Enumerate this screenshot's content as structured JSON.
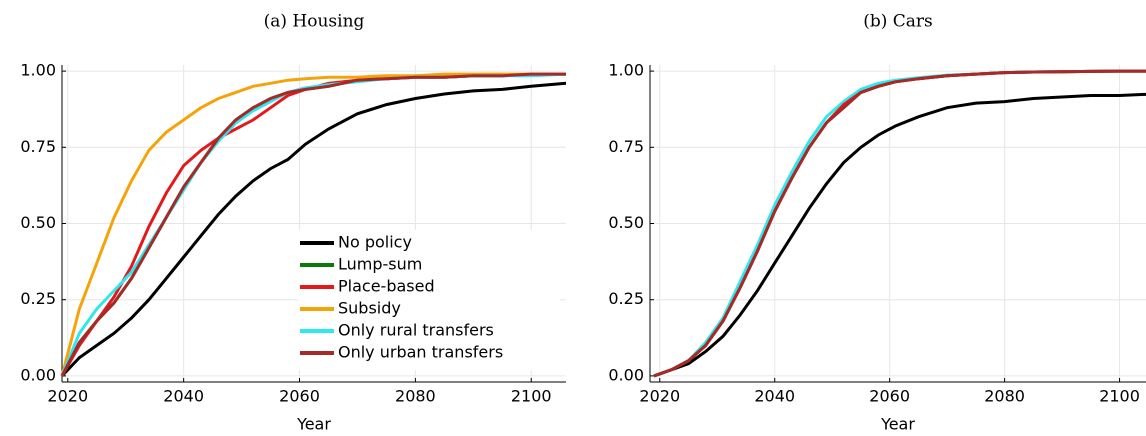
{
  "chart_data": [
    {
      "type": "line",
      "title": "(a) Housing",
      "xlabel": "Year",
      "legend": "lower right",
      "grid": true,
      "x": [
        2019,
        2022,
        2025,
        2028,
        2031,
        2034,
        2037,
        2040,
        2043,
        2046,
        2049,
        2052,
        2055,
        2058,
        2061,
        2065,
        2070,
        2075,
        2080,
        2085,
        2090,
        2095,
        2100,
        2106
      ],
      "xlim": [
        2019,
        2106
      ],
      "xticks": [
        2020,
        2040,
        2060,
        2080,
        2100
      ],
      "ylim": [
        -0.02,
        1.02
      ],
      "yticks": [
        {
          "value": 0,
          "label": "0.00"
        },
        {
          "value": 0.25,
          "label": "0.25"
        },
        {
          "value": 0.5,
          "label": "0.50"
        },
        {
          "value": 0.75,
          "label": "0.75"
        },
        {
          "value": 1,
          "label": "1.00"
        }
      ],
      "series": [
        {
          "name": "No policy",
          "color": "#000000",
          "values": [
            0,
            0.06,
            0.1,
            0.14,
            0.19,
            0.25,
            0.32,
            0.39,
            0.46,
            0.53,
            0.59,
            0.64,
            0.68,
            0.71,
            0.76,
            0.81,
            0.86,
            0.89,
            0.91,
            0.925,
            0.935,
            0.94,
            0.95,
            0.96
          ]
        },
        {
          "name": "Lump-sum",
          "color": "#0a7a0a",
          "values": [
            0,
            0.11,
            0.18,
            0.24,
            0.32,
            0.42,
            0.52,
            0.62,
            0.7,
            0.78,
            0.84,
            0.88,
            0.91,
            0.93,
            0.94,
            0.95,
            0.97,
            0.975,
            0.98,
            0.98,
            0.985,
            0.985,
            0.99,
            0.99
          ]
        },
        {
          "name": "Place-based",
          "color": "#e31a1c",
          "values": [
            0,
            0.1,
            0.18,
            0.26,
            0.36,
            0.49,
            0.6,
            0.69,
            0.74,
            0.78,
            0.81,
            0.84,
            0.88,
            0.92,
            0.94,
            0.96,
            0.97,
            0.975,
            0.98,
            0.98,
            0.985,
            0.985,
            0.99,
            0.99
          ]
        },
        {
          "name": "Subsidy",
          "color": "#f5a30a",
          "values": [
            0,
            0.22,
            0.37,
            0.52,
            0.64,
            0.74,
            0.8,
            0.84,
            0.88,
            0.91,
            0.93,
            0.95,
            0.96,
            0.97,
            0.975,
            0.98,
            0.98,
            0.985,
            0.985,
            0.99,
            0.99,
            0.99,
            0.99,
            0.99
          ]
        },
        {
          "name": "Only rural transfers",
          "color": "#2ee8ee",
          "values": [
            0,
            0.14,
            0.22,
            0.28,
            0.34,
            0.43,
            0.52,
            0.61,
            0.7,
            0.77,
            0.83,
            0.87,
            0.9,
            0.93,
            0.945,
            0.955,
            0.965,
            0.975,
            0.98,
            0.98,
            0.985,
            0.985,
            0.985,
            0.99
          ]
        },
        {
          "name": "Only urban transfers",
          "color": "#a52a2a",
          "values": [
            0,
            0.11,
            0.18,
            0.24,
            0.32,
            0.42,
            0.52,
            0.62,
            0.7,
            0.78,
            0.84,
            0.88,
            0.91,
            0.93,
            0.94,
            0.95,
            0.97,
            0.975,
            0.98,
            0.98,
            0.985,
            0.985,
            0.99,
            0.99
          ]
        }
      ]
    },
    {
      "type": "line",
      "title": "(b) Cars",
      "xlabel": "Year",
      "grid": true,
      "x": [
        2019,
        2022,
        2025,
        2028,
        2031,
        2034,
        2037,
        2040,
        2043,
        2046,
        2049,
        2052,
        2055,
        2058,
        2061,
        2065,
        2070,
        2075,
        2080,
        2085,
        2090,
        2095,
        2100,
        2106
      ],
      "xlim": [
        2018.3,
        2104.6
      ],
      "xticks": [
        2020,
        2040,
        2060,
        2080,
        2100
      ],
      "ylim": [
        -0.02,
        1.02
      ],
      "yticks": [
        {
          "value": 0,
          "label": "0.00"
        },
        {
          "value": 0.25,
          "label": "0.25"
        },
        {
          "value": 0.5,
          "label": "0.50"
        },
        {
          "value": 0.75,
          "label": "0.75"
        },
        {
          "value": 1,
          "label": "1.00"
        }
      ],
      "series": [
        {
          "color": "#000000",
          "values": [
            0,
            0.02,
            0.04,
            0.08,
            0.13,
            0.2,
            0.28,
            0.37,
            0.46,
            0.55,
            0.63,
            0.7,
            0.75,
            0.79,
            0.82,
            0.85,
            0.88,
            0.895,
            0.9,
            0.91,
            0.915,
            0.92,
            0.92,
            0.925
          ]
        },
        {
          "color": "#0a7a0a",
          "values": [
            0,
            0.02,
            0.05,
            0.1,
            0.18,
            0.29,
            0.41,
            0.54,
            0.65,
            0.75,
            0.83,
            0.89,
            0.93,
            0.95,
            0.965,
            0.975,
            0.985,
            0.99,
            0.995,
            0.997,
            0.998,
            0.999,
            1,
            1
          ]
        },
        {
          "color": "#2ee8ee",
          "values": [
            0,
            0.02,
            0.05,
            0.11,
            0.19,
            0.31,
            0.43,
            0.56,
            0.67,
            0.77,
            0.85,
            0.9,
            0.94,
            0.96,
            0.97,
            0.978,
            0.987,
            0.99,
            0.995,
            0.997,
            0.998,
            0.999,
            1,
            1
          ]
        },
        {
          "color": "#e31a1c",
          "values": [
            0,
            0.02,
            0.05,
            0.1,
            0.18,
            0.29,
            0.41,
            0.54,
            0.65,
            0.75,
            0.83,
            0.89,
            0.93,
            0.95,
            0.965,
            0.975,
            0.985,
            0.99,
            0.995,
            0.997,
            0.998,
            0.999,
            1,
            1
          ]
        },
        {
          "color": "#a52a2a",
          "values": [
            0,
            0.02,
            0.05,
            0.1,
            0.18,
            0.29,
            0.41,
            0.54,
            0.65,
            0.75,
            0.83,
            0.88,
            0.93,
            0.95,
            0.965,
            0.975,
            0.985,
            0.99,
            0.995,
            0.997,
            0.998,
            0.999,
            1,
            1
          ]
        }
      ]
    }
  ]
}
